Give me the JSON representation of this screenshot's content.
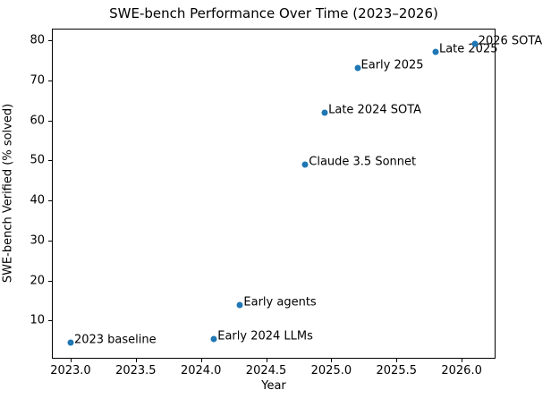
{
  "chart_data": {
    "type": "scatter",
    "title": "SWE-bench Performance Over Time (2023–2026)",
    "xlabel": "Year",
    "ylabel": "SWE-bench Verified (% solved)",
    "xlim": [
      2022.856,
      2026.26
    ],
    "ylim": [
      0.5,
      82.9
    ],
    "x_ticks": [
      {
        "value": 2023.0,
        "label": "2023.0"
      },
      {
        "value": 2023.5,
        "label": "2023.5"
      },
      {
        "value": 2024.0,
        "label": "2024.0"
      },
      {
        "value": 2024.5,
        "label": "2024.5"
      },
      {
        "value": 2025.0,
        "label": "2025.0"
      },
      {
        "value": 2025.5,
        "label": "2025.5"
      },
      {
        "value": 2026.0,
        "label": "2026.0"
      }
    ],
    "y_ticks": [
      {
        "value": 10,
        "label": "10"
      },
      {
        "value": 20,
        "label": "20"
      },
      {
        "value": 30,
        "label": "30"
      },
      {
        "value": 40,
        "label": "40"
      },
      {
        "value": 50,
        "label": "50"
      },
      {
        "value": 60,
        "label": "60"
      },
      {
        "value": 70,
        "label": "70"
      },
      {
        "value": 80,
        "label": "80"
      }
    ],
    "grid": false,
    "legend_position": "none",
    "marker_color": "#1f77b4",
    "text_color": "#000000",
    "points": [
      {
        "label": "2023 baseline",
        "x": 2023.0,
        "y": 4.5
      },
      {
        "label": "Early 2024 LLMs",
        "x": 2024.1,
        "y": 5.5
      },
      {
        "label": "Early agents",
        "x": 2024.3,
        "y": 14
      },
      {
        "label": "Claude 3.5 Sonnet",
        "x": 2024.8,
        "y": 49
      },
      {
        "label": "Late 2024 SOTA",
        "x": 2024.95,
        "y": 62
      },
      {
        "label": "Early 2025",
        "x": 2025.2,
        "y": 73
      },
      {
        "label": "Late 2025",
        "x": 2025.8,
        "y": 77
      },
      {
        "label": "2026 SOTA",
        "x": 2026.1,
        "y": 79
      }
    ]
  }
}
